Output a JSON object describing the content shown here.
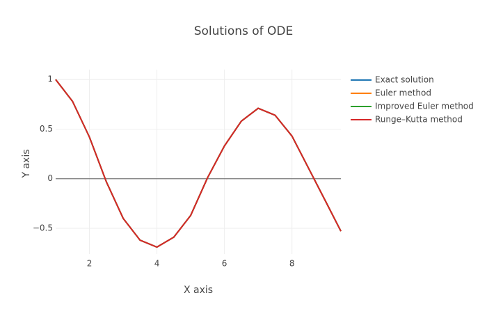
{
  "chart_data": {
    "type": "line",
    "title": "Solutions of ODE",
    "x_label": "X axis",
    "y_label": "Y axis",
    "x": [
      1,
      1.5,
      2,
      2.5,
      3,
      3.5,
      4,
      4.5,
      5,
      5.5,
      6,
      6.5,
      7,
      7.5,
      8,
      8.5,
      9,
      9.45
    ],
    "series": [
      {
        "name": "Exact solution",
        "color": "#1f77b4",
        "values": [
          1.0,
          0.78,
          0.42,
          -0.03,
          -0.4,
          -0.62,
          -0.69,
          -0.59,
          -0.37,
          0.01,
          0.33,
          0.58,
          0.71,
          0.64,
          0.43,
          0.1,
          -0.23,
          -0.53
        ]
      },
      {
        "name": "Euler method",
        "color": "#ff7f0e",
        "values": [
          1.0,
          0.78,
          0.42,
          -0.03,
          -0.4,
          -0.62,
          -0.69,
          -0.59,
          -0.37,
          0.01,
          0.33,
          0.58,
          0.71,
          0.64,
          0.43,
          0.1,
          -0.23,
          -0.53
        ]
      },
      {
        "name": "Improved Euler method",
        "color": "#2ca02c",
        "values": [
          1.0,
          0.78,
          0.42,
          -0.03,
          -0.4,
          -0.62,
          -0.69,
          -0.59,
          -0.37,
          0.01,
          0.33,
          0.58,
          0.71,
          0.64,
          0.43,
          0.1,
          -0.23,
          -0.53
        ]
      },
      {
        "name": "Runge–Kutta method",
        "color": "#d62728",
        "values": [
          1.0,
          0.78,
          0.42,
          -0.03,
          -0.4,
          -0.62,
          -0.69,
          -0.59,
          -0.37,
          0.01,
          0.33,
          0.58,
          0.71,
          0.64,
          0.43,
          0.1,
          -0.23,
          -0.53
        ]
      }
    ],
    "xlim": [
      1,
      9.45
    ],
    "ylim": [
      -0.76,
      1.1
    ],
    "xticks": [
      2,
      4,
      6,
      8
    ],
    "yticks": [
      1,
      0.5,
      0,
      {
        "value": -0.5,
        "label": "−0.5"
      }
    ],
    "grid": true,
    "legend": "right"
  }
}
